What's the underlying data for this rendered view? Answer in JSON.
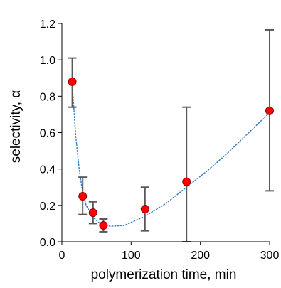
{
  "chart_data": {
    "type": "scatter",
    "title": "",
    "xlabel": "polymerization time, min",
    "ylabel": "selectivity, α",
    "xlim": [
      0,
      300
    ],
    "ylim": [
      0,
      1.2
    ],
    "x_ticks": [
      0,
      100,
      200,
      300
    ],
    "y_ticks": [
      0.0,
      0.2,
      0.4,
      0.6,
      0.8,
      1.0,
      1.2
    ],
    "x_tick_labels": [
      "0",
      "100",
      "200",
      "300"
    ],
    "y_tick_labels": [
      "0.0",
      "0.2",
      "0.4",
      "0.6",
      "0.8",
      "1.0",
      "1.2"
    ],
    "grid": false,
    "legend": "none",
    "series": [
      {
        "points": [
          {
            "x": 15,
            "y": 0.88,
            "err_low": 0.74,
            "err_high": 1.01
          },
          {
            "x": 30,
            "y": 0.25,
            "err_low": 0.15,
            "err_high": 0.355
          },
          {
            "x": 45,
            "y": 0.16,
            "err_low": 0.1,
            "err_high": 0.22
          },
          {
            "x": 60,
            "y": 0.09,
            "err_low": 0.055,
            "err_high": 0.125
          },
          {
            "x": 120,
            "y": 0.18,
            "err_low": 0.06,
            "err_high": 0.3
          },
          {
            "x": 180,
            "y": 0.33,
            "err_low": 0.0,
            "err_high": 0.74
          },
          {
            "x": 300,
            "y": 0.72,
            "err_low": 0.28,
            "err_high": 1.165
          }
        ],
        "marker_color": "#ff0000",
        "marker_edge": "#8b0000",
        "errorbar_color": "#595959"
      }
    ],
    "trendline": {
      "style": "dotted",
      "color": "#3a7fc4",
      "points": [
        [
          15,
          0.86
        ],
        [
          20,
          0.58
        ],
        [
          25,
          0.4
        ],
        [
          30,
          0.27
        ],
        [
          35,
          0.2
        ],
        [
          45,
          0.135
        ],
        [
          55,
          0.1
        ],
        [
          70,
          0.085
        ],
        [
          90,
          0.09
        ],
        [
          120,
          0.14
        ],
        [
          150,
          0.21
        ],
        [
          180,
          0.3
        ],
        [
          210,
          0.39
        ],
        [
          240,
          0.49
        ],
        [
          270,
          0.6
        ],
        [
          300,
          0.71
        ]
      ]
    }
  }
}
